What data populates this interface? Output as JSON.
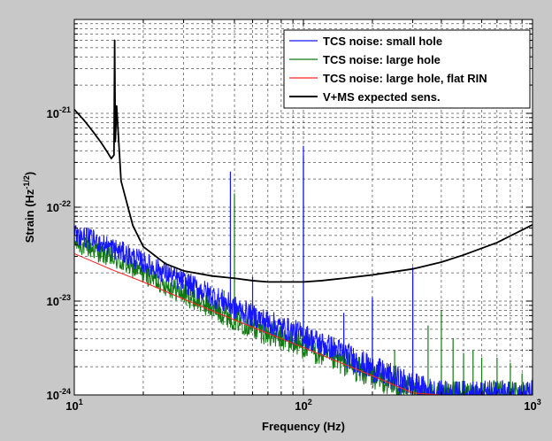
{
  "chart_data": {
    "type": "line",
    "xlabel": "Frequency (Hz)",
    "ylabel": "Strain (Hz",
    "ylabel_exp": "-1/2",
    "ylabel_close": ")",
    "xscale": "log",
    "yscale": "log",
    "xlim": [
      10,
      1000
    ],
    "ylim": [
      1e-24,
      1e-20
    ],
    "grid": true,
    "legend_position": "top-right",
    "x_ticks": [
      {
        "value": 10,
        "base": "10",
        "exp": "1"
      },
      {
        "value": 100,
        "base": "10",
        "exp": "2"
      },
      {
        "value": 1000,
        "base": "10",
        "exp": "3"
      }
    ],
    "y_ticks": [
      {
        "value": 1e-24,
        "base": "10",
        "exp": "-24"
      },
      {
        "value": 1e-23,
        "base": "10",
        "exp": "-23"
      },
      {
        "value": 1e-22,
        "base": "10",
        "exp": "-22"
      },
      {
        "value": 1e-21,
        "base": "10",
        "exp": "-21"
      }
    ],
    "series": [
      {
        "name": "TCS noise: small hole",
        "color": "#1515ff",
        "x": [
          10,
          12,
          15,
          20,
          25,
          30,
          40,
          50,
          60,
          70,
          80,
          100,
          120,
          150,
          170,
          200,
          250,
          300,
          350,
          400,
          500,
          600,
          700,
          800,
          1000
        ],
        "y": [
          5.2e-23,
          4.5e-23,
          3.6e-23,
          2.6e-23,
          2e-23,
          1.6e-23,
          1.15e-23,
          8.5e-24,
          7e-24,
          6e-24,
          5.2e-24,
          4.3e-24,
          3.5e-24,
          2.8e-24,
          2.3e-24,
          1.9e-24,
          1.5e-24,
          1.25e-24,
          1.1e-24,
          1e-24,
          1e-24,
          1e-24,
          1e-24,
          1e-24,
          1e-24
        ],
        "spikes": [
          {
            "x": 48,
            "y": 2.4e-22
          },
          {
            "x": 60,
            "y": 1.8e-23
          },
          {
            "x": 100,
            "y": 4.5e-22
          },
          {
            "x": 150,
            "y": 7.5e-24
          },
          {
            "x": 200,
            "y": 1.1e-23
          },
          {
            "x": 300,
            "y": 2.3e-23
          }
        ]
      },
      {
        "name": "TCS noise: large hole",
        "color": "#127a12",
        "x": [
          10,
          12,
          15,
          20,
          25,
          30,
          40,
          50,
          60,
          70,
          80,
          100,
          120,
          150,
          170,
          200,
          250,
          300,
          350,
          400,
          500,
          600,
          700,
          800,
          1000
        ],
        "y": [
          4.2e-23,
          3.6e-23,
          2.8e-23,
          2e-23,
          1.5e-23,
          1.2e-23,
          8.5e-24,
          6.5e-24,
          5.3e-24,
          4.5e-24,
          4e-24,
          3.3e-24,
          2.7e-24,
          2.2e-24,
          1.9e-24,
          1.6e-24,
          1.3e-24,
          1.1e-24,
          1e-24,
          1e-24,
          1e-24,
          1e-24,
          1e-24,
          1e-24,
          1e-24
        ],
        "spikes": [
          {
            "x": 45,
            "y": 1.3e-23
          },
          {
            "x": 50,
            "y": 1.4e-22
          },
          {
            "x": 100,
            "y": 3.5e-22
          },
          {
            "x": 150,
            "y": 5e-24
          },
          {
            "x": 200,
            "y": 1e-23
          },
          {
            "x": 250,
            "y": 3e-24
          },
          {
            "x": 300,
            "y": 1.9e-23
          },
          {
            "x": 350,
            "y": 5.5e-24
          },
          {
            "x": 400,
            "y": 8e-24
          },
          {
            "x": 450,
            "y": 4e-24
          },
          {
            "x": 500,
            "y": 2.8e-24
          },
          {
            "x": 550,
            "y": 3e-24
          },
          {
            "x": 600,
            "y": 2.5e-24
          },
          {
            "x": 700,
            "y": 2.5e-24
          },
          {
            "x": 800,
            "y": 2.2e-24
          },
          {
            "x": 900,
            "y": 1.7e-24
          },
          {
            "x": 1000,
            "y": 1.5e-24
          }
        ]
      },
      {
        "name": "TCS noise: large hole, flat RIN",
        "color": "#ff2020",
        "x": [
          10,
          15,
          20,
          30,
          50,
          100,
          200,
          300,
          400
        ],
        "y": [
          3.2e-23,
          2.1e-23,
          1.6e-23,
          1.05e-23,
          6.3e-24,
          3.2e-24,
          1.6e-24,
          1.05e-24,
          8e-25
        ]
      },
      {
        "name": "V+MS expected sens.",
        "color": "#000000",
        "x": [
          10,
          11,
          12,
          13,
          14,
          14.5,
          14.9,
          15.0,
          15.1,
          15.3,
          16,
          18,
          20,
          25,
          30,
          40,
          50,
          60,
          70,
          80,
          100,
          120,
          150,
          200,
          300,
          400,
          500,
          700,
          1000
        ],
        "y": [
          1.1e-21,
          8.5e-22,
          6.5e-22,
          5e-22,
          3.8e-22,
          3.3e-22,
          3.6e-22,
          6e-21,
          5e-22,
          1.2e-21,
          1.9e-22,
          6.4e-23,
          3.8e-23,
          2.5e-23,
          2.1e-23,
          1.85e-23,
          1.75e-23,
          1.65e-23,
          1.6e-23,
          1.6e-23,
          1.6e-23,
          1.65e-23,
          1.75e-23,
          1.9e-23,
          2.2e-23,
          2.6e-23,
          3.1e-23,
          4.2e-23,
          6.5e-23
        ]
      }
    ]
  }
}
